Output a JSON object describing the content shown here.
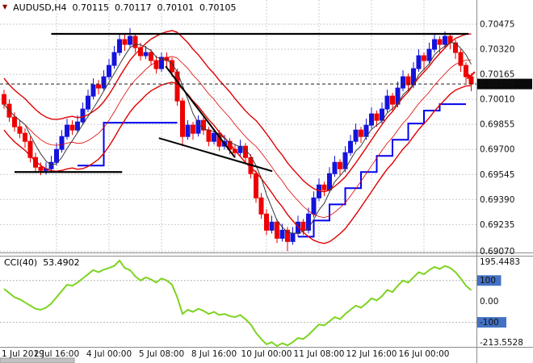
{
  "window": {
    "symbol": "AUDUSD,H4",
    "ohlc": {
      "open": "0.70115",
      "high": "0.70117",
      "low": "0.70101",
      "close": "0.70105"
    }
  },
  "indicator_label": {
    "name": "CCI(40)",
    "value": "53.4902"
  },
  "colors": {
    "bull": "#1414DC",
    "bear": "#EE0000",
    "envelope": "#E00000",
    "ma_fast": "#3A3A3A",
    "stop_line": "#0000EE",
    "grid": "#CCCCCC",
    "level_dash": "#B4B4B4",
    "separator": "#8C8C8C",
    "badge_blue": "#4472C4",
    "badge_black": "#0A0A0A",
    "cci_line": "#7ED321",
    "object_black": "#000000",
    "bid_line": "#222222",
    "scrollbar": "#C2C2C2"
  },
  "chart_data": [
    {
      "type": "candlestick",
      "title": "AUDUSD,H4",
      "ylim": [
        0.69062,
        0.70545
      ],
      "y_ticks": [
        "0.70475",
        "0.70320",
        "0.70165",
        "0.70010",
        "0.69855",
        "0.69700",
        "0.69545",
        "0.69390",
        "0.69235",
        "0.69070"
      ],
      "x_ticks": [
        {
          "bar": 0,
          "label": "1 Jul 2019"
        },
        {
          "bar": 10,
          "label": "2 Jul 16:00"
        },
        {
          "bar": 20,
          "label": "4 Jul 00:00"
        },
        {
          "bar": 30,
          "label": "5 Jul 08:00"
        },
        {
          "bar": 40,
          "label": "8 Jul 16:00"
        },
        {
          "bar": 50,
          "label": "10 Jul 00:00"
        },
        {
          "bar": 60,
          "label": "11 Jul 08:00"
        },
        {
          "bar": 70,
          "label": "12 Jul 16:00"
        },
        {
          "bar": 80,
          "label": "16 Jul 00:00"
        }
      ],
      "current_bid": "0.70105",
      "candles": [
        [
          0.7004,
          0.7007,
          0.6995,
          0.6998
        ],
        [
          0.6998,
          0.7001,
          0.6987,
          0.699
        ],
        [
          0.699,
          0.6993,
          0.6981,
          0.6984
        ],
        [
          0.6984,
          0.6988,
          0.6977,
          0.698
        ],
        [
          0.698,
          0.6983,
          0.6971,
          0.6975
        ],
        [
          0.6975,
          0.6978,
          0.6962,
          0.6965
        ],
        [
          0.6965,
          0.6968,
          0.6956,
          0.6959
        ],
        [
          0.6959,
          0.6962,
          0.6954,
          0.6957
        ],
        [
          0.6957,
          0.6962,
          0.69545,
          0.6958
        ],
        [
          0.6958,
          0.6966,
          0.6956,
          0.6962
        ],
        [
          0.6962,
          0.6974,
          0.696,
          0.697
        ],
        [
          0.697,
          0.6982,
          0.6968,
          0.6978
        ],
        [
          0.6978,
          0.6989,
          0.6976,
          0.6985
        ],
        [
          0.6985,
          0.6988,
          0.6979,
          0.6982
        ],
        [
          0.6982,
          0.6991,
          0.698,
          0.6987
        ],
        [
          0.6987,
          0.6999,
          0.6985,
          0.6995
        ],
        [
          0.6995,
          0.7007,
          0.6993,
          0.7003
        ],
        [
          0.7003,
          0.7014,
          0.7001,
          0.701
        ],
        [
          0.701,
          0.7013,
          0.7004,
          0.7008
        ],
        [
          0.7008,
          0.7019,
          0.7006,
          0.7015
        ],
        [
          0.7015,
          0.7026,
          0.7013,
          0.7022
        ],
        [
          0.7022,
          0.7034,
          0.702,
          0.703
        ],
        [
          0.703,
          0.7042,
          0.7028,
          0.7038
        ],
        [
          0.7038,
          0.7041,
          0.7031,
          0.7035
        ],
        [
          0.7035,
          0.7045,
          0.7033,
          0.704
        ],
        [
          0.704,
          0.7042,
          0.703,
          0.7033
        ],
        [
          0.7033,
          0.7036,
          0.7025,
          0.7028
        ],
        [
          0.7028,
          0.7034,
          0.7026,
          0.703
        ],
        [
          0.703,
          0.7032,
          0.7022,
          0.7025
        ],
        [
          0.7025,
          0.7028,
          0.7017,
          0.702
        ],
        [
          0.702,
          0.703,
          0.7018,
          0.7027
        ],
        [
          0.7027,
          0.703,
          0.7021,
          0.7025
        ],
        [
          0.7025,
          0.7027,
          0.7015,
          0.7018
        ],
        [
          0.7018,
          0.702,
          0.6997,
          0.7
        ],
        [
          0.7,
          0.7002,
          0.6972,
          0.6978
        ],
        [
          0.6978,
          0.6988,
          0.6976,
          0.6985
        ],
        [
          0.6985,
          0.6987,
          0.6976,
          0.698
        ],
        [
          0.698,
          0.6991,
          0.6978,
          0.6988
        ],
        [
          0.6988,
          0.699,
          0.6979,
          0.6982
        ],
        [
          0.6982,
          0.6984,
          0.6972,
          0.6975
        ],
        [
          0.6975,
          0.6983,
          0.6973,
          0.698
        ],
        [
          0.698,
          0.6982,
          0.6969,
          0.6972
        ],
        [
          0.6972,
          0.6979,
          0.697,
          0.6975
        ],
        [
          0.6975,
          0.6977,
          0.6967,
          0.697
        ],
        [
          0.697,
          0.6973,
          0.6965,
          0.6968
        ],
        [
          0.6968,
          0.6976,
          0.6966,
          0.6972
        ],
        [
          0.6972,
          0.6974,
          0.6962,
          0.6965
        ],
        [
          0.6965,
          0.6967,
          0.6952,
          0.6955
        ],
        [
          0.6955,
          0.6957,
          0.6937,
          0.694
        ],
        [
          0.694,
          0.6943,
          0.6927,
          0.693
        ],
        [
          0.693,
          0.6933,
          0.6917,
          0.692
        ],
        [
          0.692,
          0.6929,
          0.6918,
          0.6925
        ],
        [
          0.6925,
          0.6927,
          0.6912,
          0.6915
        ],
        [
          0.6915,
          0.6924,
          0.6913,
          0.692
        ],
        [
          0.692,
          0.6922,
          0.6907,
          0.6913
        ],
        [
          0.6913,
          0.6922,
          0.6911,
          0.6918
        ],
        [
          0.6918,
          0.6929,
          0.6916,
          0.6925
        ],
        [
          0.6925,
          0.6927,
          0.6917,
          0.692
        ],
        [
          0.692,
          0.6934,
          0.6918,
          0.693
        ],
        [
          0.693,
          0.6944,
          0.6928,
          0.694
        ],
        [
          0.694,
          0.6952,
          0.6938,
          0.6948
        ],
        [
          0.6948,
          0.695,
          0.6941,
          0.6945
        ],
        [
          0.6945,
          0.6959,
          0.6943,
          0.6955
        ],
        [
          0.6955,
          0.6966,
          0.6953,
          0.6962
        ],
        [
          0.6962,
          0.6964,
          0.6954,
          0.6958
        ],
        [
          0.6958,
          0.6972,
          0.6956,
          0.6968
        ],
        [
          0.6968,
          0.6979,
          0.6966,
          0.6975
        ],
        [
          0.6975,
          0.6986,
          0.6973,
          0.6982
        ],
        [
          0.6982,
          0.6984,
          0.6974,
          0.6978
        ],
        [
          0.6978,
          0.6989,
          0.6976,
          0.6985
        ],
        [
          0.6985,
          0.6996,
          0.6983,
          0.6992
        ],
        [
          0.6992,
          0.6994,
          0.6984,
          0.6988
        ],
        [
          0.6988,
          0.6999,
          0.6986,
          0.6995
        ],
        [
          0.6995,
          0.7007,
          0.6993,
          0.7003
        ],
        [
          0.7003,
          0.7005,
          0.6994,
          0.6998
        ],
        [
          0.6998,
          0.7012,
          0.6996,
          0.7008
        ],
        [
          0.7008,
          0.7019,
          0.7006,
          0.7015
        ],
        [
          0.7015,
          0.7017,
          0.7006,
          0.701
        ],
        [
          0.701,
          0.7024,
          0.7008,
          0.702
        ],
        [
          0.702,
          0.7032,
          0.7018,
          0.7028
        ],
        [
          0.7028,
          0.703,
          0.7019,
          0.7025
        ],
        [
          0.7025,
          0.7036,
          0.7023,
          0.7032
        ],
        [
          0.7032,
          0.7042,
          0.703,
          0.7038
        ],
        [
          0.7038,
          0.704,
          0.703,
          0.7035
        ],
        [
          0.7035,
          0.7043,
          0.7033,
          0.704
        ],
        [
          0.704,
          0.7042,
          0.7032,
          0.7036
        ],
        [
          0.7036,
          0.7038,
          0.7026,
          0.703
        ],
        [
          0.703,
          0.7032,
          0.7018,
          0.7022
        ],
        [
          0.7022,
          0.7024,
          0.7011,
          0.7015
        ],
        [
          0.7015,
          0.7017,
          0.7006,
          0.70105
        ]
      ],
      "overlays": {
        "envelope_offset": 0.0016,
        "sma_slow_period": 14,
        "sma_fast_period": 5,
        "stop_line_segments": [
          [
            [
              14,
              19,
              0.696
            ],
            [
              19,
              33,
              0.69865
            ]
          ],
          [
            [
              56,
              59,
              0.6916
            ],
            [
              59,
              62,
              0.6926
            ],
            [
              62,
              65,
              0.6936
            ],
            [
              65,
              68,
              0.6946
            ],
            [
              68,
              71,
              0.6956
            ],
            [
              71,
              74,
              0.6966
            ],
            [
              74,
              77,
              0.6976
            ],
            [
              77,
              80,
              0.6986
            ],
            [
              80,
              83,
              0.6994
            ],
            [
              83,
              88,
              0.6998
            ]
          ]
        ]
      },
      "objects": {
        "resistance": {
          "from_bar": 9,
          "to_bar": 88.5,
          "price": 0.70415
        },
        "support": {
          "from_bar": 2,
          "to_bar": 22.5,
          "price": 0.6956
        },
        "trendline_steep": {
          "from": [
            30.8,
            0.70215
          ],
          "to": [
            44.0,
            0.6965
          ]
        },
        "trendline_shallow": {
          "from": [
            29.5,
            0.6977
          ],
          "to": [
            51.1,
            0.69565
          ]
        },
        "sell_arrow": {
          "bar": 88.3,
          "price": 0.7014
        }
      }
    },
    {
      "type": "line",
      "name": "CCI(40)",
      "last_value": "53.4902",
      "ylim": [
        -213.5528,
        195.4483
      ],
      "levels": [
        100,
        -100
      ],
      "y_labels": {
        "max": "195.4483",
        "zero": "0.00",
        "min": "-213.5528",
        "level_badges": [
          "100",
          "-100"
        ]
      },
      "values": [
        60,
        40,
        20,
        10,
        -5,
        -20,
        -35,
        -40,
        -30,
        -10,
        20,
        50,
        80,
        75,
        90,
        110,
        130,
        150,
        140,
        152,
        160,
        170,
        195.4483,
        160,
        150,
        120,
        100,
        115,
        105,
        90,
        110,
        100,
        80,
        20,
        -60,
        -40,
        -50,
        -35,
        -45,
        -60,
        -50,
        -65,
        -60,
        -70,
        -75,
        -65,
        -85,
        -110,
        -150,
        -180,
        -205,
        -195,
        -213.5528,
        -200,
        -210,
        -195,
        -175,
        -180,
        -160,
        -135,
        -110,
        -115,
        -95,
        -75,
        -85,
        -60,
        -40,
        -20,
        -30,
        -10,
        15,
        5,
        25,
        55,
        45,
        75,
        100,
        90,
        115,
        140,
        130,
        150,
        165,
        155,
        170,
        160,
        140,
        110,
        75,
        53.4902
      ]
    }
  ]
}
